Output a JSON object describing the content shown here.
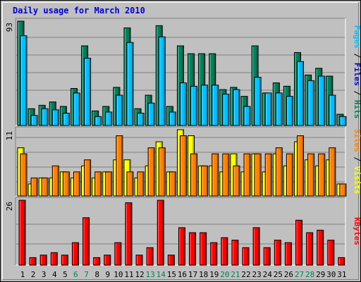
{
  "chart_data": [
    {
      "type": "bar",
      "title": "Daily usage for March 2010",
      "categories": [
        "1",
        "2",
        "3",
        "4",
        "5",
        "6",
        "7",
        "8",
        "9",
        "10",
        "11",
        "12",
        "13",
        "14",
        "15",
        "16",
        "17",
        "18",
        "19",
        "20",
        "21",
        "22",
        "23",
        "24",
        "25",
        "26",
        "27",
        "28",
        "29",
        "30",
        "31"
      ],
      "weekend_days": [
        "6",
        "7",
        "13",
        "14",
        "20",
        "21",
        "27",
        "28"
      ],
      "ylim": [
        0,
        93
      ],
      "max_label": "93",
      "legend": [
        "Pages",
        "Files",
        "Hits"
      ],
      "series": [
        {
          "name": "Hits",
          "color": "#00805a",
          "values": [
            93,
            15,
            18,
            21,
            17,
            33,
            71,
            13,
            17,
            34,
            87,
            15,
            27,
            89,
            17,
            71,
            64,
            64,
            64,
            32,
            34,
            26,
            71,
            29,
            38,
            35,
            65,
            45,
            51,
            44,
            10
          ]
        },
        {
          "name": "Files",
          "color": "#00c0ff",
          "values": [
            80,
            9,
            15,
            14,
            11,
            29,
            60,
            8,
            12,
            27,
            74,
            11,
            20,
            79,
            12,
            38,
            35,
            36,
            36,
            28,
            32,
            17,
            43,
            29,
            29,
            26,
            57,
            40,
            44,
            27,
            8
          ]
        }
      ]
    },
    {
      "type": "bar",
      "ylim": [
        0,
        11
      ],
      "max_label": "11",
      "legend": [
        "Sites",
        "Visits"
      ],
      "series": [
        {
          "name": "Visits",
          "color": "#ffff00",
          "values": [
            8,
            2,
            3,
            3,
            4,
            3,
            5,
            3,
            4,
            6,
            6,
            3,
            5,
            9,
            4,
            11,
            10,
            5,
            5,
            4,
            7,
            4,
            7,
            4,
            7,
            5,
            9,
            6,
            5,
            6,
            2
          ]
        },
        {
          "name": "Sites",
          "color": "#ff8000",
          "values": [
            7,
            3,
            3,
            5,
            4,
            4,
            6,
            4,
            4,
            10,
            4,
            4,
            8,
            8,
            4,
            10,
            7,
            5,
            7,
            7,
            5,
            7,
            7,
            7,
            8,
            7,
            10,
            7,
            7,
            8,
            2
          ]
        }
      ]
    },
    {
      "type": "bar",
      "ylim": [
        0,
        26
      ],
      "max_label": "26",
      "legend": [
        "KBytes"
      ],
      "series": [
        {
          "name": "KBytes",
          "color": "#ff0000",
          "values": [
            26,
            3,
            4,
            5,
            4,
            9,
            19,
            3,
            4,
            9,
            25,
            4,
            7,
            26,
            4,
            15,
            13,
            13,
            9,
            11,
            10,
            7,
            15,
            7,
            10,
            9,
            18,
            13,
            14,
            10,
            3
          ]
        }
      ]
    }
  ]
}
